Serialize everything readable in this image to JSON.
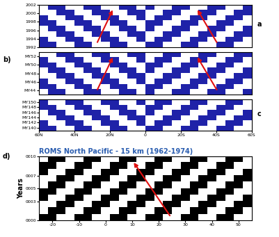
{
  "chart_data": [
    {
      "type": "heatmap",
      "panel_label": "a",
      "xlim": [
        60,
        -60
      ],
      "ylim": [
        1992,
        2002
      ],
      "yticks": [
        1992,
        1994,
        1996,
        1998,
        2000,
        2002
      ],
      "tick_labels": "y",
      "colors": [
        "#ffffff",
        "#1f22a8"
      ],
      "cells": [
        [
          1,
          1,
          0,
          0,
          1,
          1,
          0,
          0,
          1,
          1,
          0,
          0,
          1,
          1,
          0,
          0,
          1,
          1,
          0,
          0,
          1,
          1,
          0,
          0
        ],
        [
          1,
          0,
          0,
          1,
          1,
          0,
          0,
          1,
          1,
          0,
          0,
          1,
          0,
          1,
          1,
          0,
          0,
          1,
          1,
          0,
          0,
          1,
          1,
          0
        ],
        [
          0,
          0,
          1,
          1,
          0,
          0,
          1,
          1,
          0,
          0,
          1,
          1,
          0,
          0,
          1,
          1,
          0,
          0,
          1,
          1,
          0,
          0,
          1,
          1
        ],
        [
          0,
          1,
          1,
          0,
          0,
          1,
          1,
          0,
          0,
          1,
          1,
          0,
          1,
          0,
          0,
          1,
          1,
          0,
          0,
          1,
          1,
          0,
          0,
          1
        ],
        [
          1,
          1,
          0,
          0,
          1,
          1,
          0,
          0,
          1,
          1,
          0,
          0,
          1,
          1,
          0,
          0,
          1,
          1,
          0,
          0,
          1,
          1,
          0,
          0
        ],
        [
          1,
          0,
          0,
          1,
          1,
          0,
          0,
          1,
          1,
          0,
          0,
          1,
          0,
          1,
          1,
          0,
          0,
          1,
          1,
          0,
          0,
          1,
          1,
          0
        ],
        [
          0,
          0,
          1,
          1,
          0,
          0,
          1,
          1,
          0,
          0,
          1,
          1,
          0,
          0,
          1,
          1,
          0,
          0,
          1,
          1,
          0,
          0,
          1,
          1
        ],
        [
          0,
          1,
          1,
          0,
          0,
          1,
          1,
          0,
          0,
          1,
          1,
          0,
          1,
          0,
          0,
          1,
          1,
          0,
          0,
          1,
          1,
          0,
          0,
          1
        ]
      ]
    },
    {
      "type": "heatmap",
      "panel_label": "b)",
      "xlim": [
        60,
        -60
      ],
      "ylim": [
        43,
        53
      ],
      "yticks": [
        {
          "value": 44,
          "label": "MY44"
        },
        {
          "value": 46,
          "label": "MY46"
        },
        {
          "value": 48,
          "label": "MY48"
        },
        {
          "value": 50,
          "label": "MY50"
        },
        {
          "value": 52,
          "label": "MY52"
        }
      ],
      "tick_labels": "y",
      "colors": [
        "#ffffff",
        "#1f22a8"
      ],
      "cells": [
        [
          0,
          1,
          1,
          0,
          0,
          1,
          1,
          0,
          0,
          1,
          1,
          0,
          1,
          0,
          0,
          1,
          1,
          0,
          0,
          1,
          1,
          0,
          0,
          1
        ],
        [
          1,
          1,
          0,
          0,
          1,
          1,
          0,
          0,
          1,
          1,
          0,
          0,
          1,
          1,
          0,
          0,
          1,
          1,
          0,
          0,
          1,
          1,
          0,
          0
        ],
        [
          1,
          0,
          0,
          1,
          1,
          0,
          0,
          1,
          1,
          0,
          0,
          1,
          0,
          1,
          1,
          0,
          0,
          1,
          1,
          0,
          0,
          1,
          1,
          0
        ],
        [
          0,
          0,
          1,
          1,
          0,
          0,
          1,
          1,
          0,
          0,
          1,
          1,
          0,
          0,
          1,
          1,
          0,
          0,
          1,
          1,
          0,
          0,
          1,
          1
        ],
        [
          0,
          1,
          1,
          0,
          0,
          1,
          1,
          0,
          0,
          1,
          1,
          0,
          1,
          0,
          0,
          1,
          1,
          0,
          0,
          1,
          1,
          0,
          0,
          1
        ],
        [
          1,
          1,
          0,
          0,
          1,
          1,
          0,
          0,
          1,
          1,
          0,
          0,
          1,
          1,
          0,
          0,
          1,
          1,
          0,
          0,
          1,
          1,
          0,
          0
        ],
        [
          1,
          0,
          0,
          1,
          1,
          0,
          0,
          1,
          1,
          0,
          0,
          1,
          0,
          1,
          1,
          0,
          0,
          1,
          1,
          0,
          0,
          1,
          1,
          0
        ],
        [
          0,
          0,
          1,
          1,
          0,
          0,
          1,
          1,
          0,
          0,
          1,
          1,
          0,
          0,
          1,
          1,
          0,
          0,
          1,
          1,
          0,
          0,
          1,
          1
        ]
      ]
    },
    {
      "type": "heatmap",
      "panel_label": "c",
      "xlim": [
        60,
        -60
      ],
      "ylim": [
        139,
        151
      ],
      "xticks": [
        {
          "value": 60,
          "label": "60N"
        },
        {
          "value": 40,
          "label": "40N"
        },
        {
          "value": 20,
          "label": "20N"
        },
        0,
        {
          "value": -20,
          "label": "20S"
        },
        {
          "value": -40,
          "label": "40S"
        },
        {
          "value": -60,
          "label": "60S"
        }
      ],
      "yticks": [
        {
          "value": 140,
          "label": "MY140"
        },
        {
          "value": 142,
          "label": "MY142"
        },
        {
          "value": 144,
          "label": "MY144"
        },
        {
          "value": 146,
          "label": "MY146"
        },
        {
          "value": 148,
          "label": "MY148"
        },
        {
          "value": 150,
          "label": "MY150"
        }
      ],
      "tick_labels": true,
      "colors": [
        "#ffffff",
        "#1f22a8"
      ],
      "cells": [
        [
          1,
          1,
          0,
          0,
          1,
          1,
          0,
          0,
          1,
          1,
          0,
          0,
          1,
          1,
          0,
          0,
          1,
          1,
          0,
          0,
          1,
          1,
          0,
          0
        ],
        [
          1,
          0,
          0,
          1,
          1,
          0,
          0,
          1,
          1,
          0,
          0,
          1,
          0,
          1,
          1,
          0,
          0,
          1,
          1,
          0,
          0,
          1,
          1,
          0
        ],
        [
          0,
          0,
          1,
          1,
          0,
          0,
          1,
          1,
          0,
          0,
          1,
          1,
          0,
          0,
          1,
          1,
          0,
          0,
          1,
          1,
          0,
          0,
          1,
          1
        ],
        [
          0,
          1,
          1,
          0,
          0,
          1,
          1,
          0,
          0,
          1,
          1,
          0,
          1,
          0,
          0,
          1,
          1,
          0,
          0,
          1,
          1,
          0,
          0,
          1
        ],
        [
          1,
          1,
          0,
          0,
          1,
          1,
          0,
          0,
          1,
          1,
          0,
          0,
          1,
          1,
          0,
          0,
          1,
          1,
          0,
          0,
          1,
          1,
          0,
          0
        ],
        [
          1,
          0,
          0,
          1,
          1,
          0,
          0,
          1,
          1,
          0,
          0,
          1,
          0,
          1,
          1,
          0,
          0,
          1,
          1,
          0,
          0,
          1,
          1,
          0
        ]
      ]
    },
    {
      "type": "heatmap",
      "panel_label": "d)",
      "title": "ROMS North Pacific - 15 km (1962-1974)",
      "y_label": "Years",
      "xlim": [
        -25,
        55
      ],
      "ylim": [
        0,
        10
      ],
      "xticks": [
        -20,
        -10,
        0,
        10,
        20,
        30,
        40,
        50
      ],
      "yticks": [
        {
          "value": 0,
          "label": "0000"
        },
        {
          "value": 3,
          "label": "0003"
        },
        {
          "value": 5,
          "label": "0005"
        },
        {
          "value": 7,
          "label": "0007"
        },
        {
          "value": 10,
          "label": "0010"
        }
      ],
      "tick_labels": true,
      "colors": [
        "#ffffff",
        "#000000"
      ],
      "cells": [
        [
          1,
          1,
          0,
          0,
          1,
          1,
          0,
          0,
          1,
          1,
          0,
          0,
          1,
          1,
          0,
          0,
          1,
          1,
          0,
          0,
          1,
          1,
          0,
          0
        ],
        [
          0,
          1,
          1,
          0,
          0,
          1,
          1,
          0,
          0,
          1,
          1,
          0,
          0,
          1,
          1,
          0,
          0,
          1,
          1,
          0,
          0,
          1,
          1,
          0
        ],
        [
          0,
          0,
          1,
          1,
          0,
          0,
          1,
          1,
          0,
          0,
          1,
          1,
          0,
          0,
          1,
          1,
          0,
          0,
          1,
          1,
          0,
          0,
          1,
          1
        ],
        [
          1,
          0,
          0,
          1,
          1,
          0,
          0,
          1,
          1,
          0,
          0,
          1,
          1,
          0,
          0,
          1,
          1,
          0,
          0,
          1,
          1,
          0,
          0,
          1
        ],
        [
          1,
          1,
          0,
          0,
          1,
          1,
          0,
          0,
          1,
          1,
          0,
          0,
          1,
          1,
          0,
          0,
          1,
          1,
          0,
          0,
          1,
          1,
          0,
          0
        ],
        [
          0,
          1,
          1,
          0,
          0,
          1,
          1,
          0,
          0,
          1,
          1,
          0,
          0,
          1,
          1,
          0,
          0,
          1,
          1,
          0,
          0,
          1,
          1,
          0
        ],
        [
          0,
          0,
          1,
          1,
          0,
          0,
          1,
          1,
          0,
          0,
          1,
          1,
          0,
          0,
          1,
          1,
          0,
          0,
          1,
          1,
          0,
          0,
          1,
          1
        ],
        [
          1,
          0,
          0,
          1,
          1,
          0,
          0,
          1,
          1,
          0,
          0,
          1,
          1,
          0,
          0,
          1,
          1,
          0,
          0,
          1,
          1,
          0,
          0,
          1
        ],
        [
          1,
          1,
          0,
          0,
          1,
          1,
          0,
          0,
          1,
          1,
          0,
          0,
          1,
          1,
          0,
          0,
          1,
          1,
          0,
          0,
          1,
          1,
          0,
          0
        ],
        [
          0,
          1,
          1,
          0,
          0,
          1,
          1,
          0,
          0,
          1,
          1,
          0,
          0,
          1,
          1,
          0,
          0,
          1,
          1,
          0,
          0,
          1,
          1,
          0
        ]
      ]
    }
  ]
}
